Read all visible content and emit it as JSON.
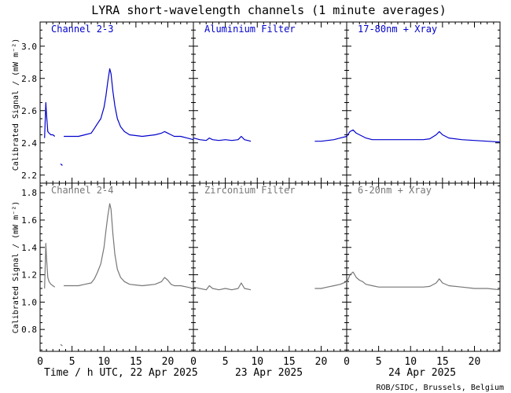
{
  "chart_data": {
    "type": "line",
    "title": "LYRA short-wavelength channels (1 minute averages)",
    "ylabel": "Calibrated Signal / (mW m⁻²)",
    "x_ticks": [
      "0",
      "5",
      "10",
      "15",
      "20"
    ],
    "x_range_hours": [
      0,
      24
    ],
    "days": [
      {
        "label": "Time / h UTC, 22 Apr 2025"
      },
      {
        "label": "23 Apr 2025"
      },
      {
        "label": "24 Apr 2025"
      }
    ],
    "credit": "ROB/SIDC, Brussels, Belgium",
    "rows": [
      {
        "color": "#0000cc",
        "ylim": [
          2.15,
          3.15
        ],
        "yticks": [
          "2.2",
          "2.4",
          "2.6",
          "2.8",
          "3.0"
        ],
        "ytick_values": [
          2.2,
          2.4,
          2.6,
          2.8,
          3.0
        ],
        "panels": [
          {
            "title": "Channel 2-3",
            "series": [
              {
                "x": [
                  0.7,
                  0.9,
                  1.0,
                  1.2,
                  1.4,
                  1.7,
                  2.0,
                  2.3
                ],
                "y": [
                  2.43,
                  2.65,
                  2.58,
                  2.47,
                  2.46,
                  2.45,
                  2.45,
                  2.44
                ]
              },
              {
                "x": [
                  3.2,
                  3.5
                ],
                "y": [
                  2.27,
                  2.26
                ]
              },
              {
                "x": [
                  3.7,
                  5,
                  6,
                  7,
                  8,
                  8.5,
                  9,
                  9.5,
                  10,
                  10.3,
                  10.6,
                  10.9,
                  11.1,
                  11.4,
                  11.7,
                  12.1,
                  12.6,
                  13.2,
                  14,
                  15,
                  16,
                  17,
                  18,
                  19,
                  19.5,
                  20,
                  20.5,
                  21,
                  22,
                  23,
                  24
                ],
                "y": [
                  2.44,
                  2.44,
                  2.44,
                  2.45,
                  2.46,
                  2.49,
                  2.52,
                  2.55,
                  2.62,
                  2.69,
                  2.78,
                  2.86,
                  2.83,
                  2.72,
                  2.63,
                  2.55,
                  2.5,
                  2.47,
                  2.45,
                  2.445,
                  2.44,
                  2.445,
                  2.45,
                  2.46,
                  2.47,
                  2.46,
                  2.45,
                  2.44,
                  2.44,
                  2.43,
                  2.42
                ]
              }
            ]
          },
          {
            "title": "Aluminium Filter",
            "series": [
              {
                "x": [
                  0,
                  1,
                  2,
                  2.5,
                  3,
                  4,
                  5,
                  6,
                  7,
                  7.5,
                  8,
                  9
                ],
                "y": [
                  2.43,
                  2.42,
                  2.415,
                  2.43,
                  2.42,
                  2.415,
                  2.42,
                  2.415,
                  2.42,
                  2.44,
                  2.42,
                  2.41
                ]
              },
              {
                "x": [
                  19,
                  20,
                  21,
                  22,
                  23,
                  24
                ],
                "y": [
                  2.41,
                  2.41,
                  2.415,
                  2.42,
                  2.43,
                  2.44
                ]
              }
            ]
          },
          {
            "title": "17-80nm + Xray",
            "series": [
              {
                "x": [
                  0,
                  0.5,
                  1,
                  1.5,
                  2,
                  2.5,
                  3,
                  4,
                  5,
                  6,
                  8,
                  10,
                  12,
                  13,
                  14,
                  14.5,
                  15,
                  16,
                  18,
                  20,
                  22,
                  24
                ],
                "y": [
                  2.44,
                  2.47,
                  2.48,
                  2.46,
                  2.45,
                  2.44,
                  2.43,
                  2.42,
                  2.42,
                  2.42,
                  2.42,
                  2.42,
                  2.42,
                  2.425,
                  2.45,
                  2.47,
                  2.45,
                  2.43,
                  2.42,
                  2.415,
                  2.41,
                  2.405
                ]
              }
            ]
          }
        ]
      },
      {
        "color": "#777777",
        "ylim": [
          0.64,
          1.87
        ],
        "yticks": [
          "0.8",
          "1.0",
          "1.2",
          "1.4",
          "1.6",
          "1.8"
        ],
        "ytick_values": [
          0.8,
          1.0,
          1.2,
          1.4,
          1.6,
          1.8
        ],
        "panels": [
          {
            "title": "Channel 2-4",
            "series": [
              {
                "x": [
                  0.7,
                  0.9,
                  1.0,
                  1.2,
                  1.4,
                  1.7,
                  2.0,
                  2.3
                ],
                "y": [
                  1.1,
                  1.43,
                  1.33,
                  1.18,
                  1.15,
                  1.13,
                  1.12,
                  1.11
                ]
              },
              {
                "x": [
                  3.2,
                  3.5
                ],
                "y": [
                  0.69,
                  0.68
                ]
              },
              {
                "x": [
                  3.7,
                  5,
                  6,
                  7,
                  8,
                  8.5,
                  9,
                  9.5,
                  10,
                  10.3,
                  10.6,
                  10.9,
                  11.1,
                  11.4,
                  11.7,
                  12.1,
                  12.6,
                  13.2,
                  14,
                  15,
                  16,
                  17,
                  18,
                  19,
                  19.5,
                  20,
                  20.5,
                  21,
                  22,
                  23,
                  24
                ],
                "y": [
                  1.12,
                  1.12,
                  1.12,
                  1.13,
                  1.14,
                  1.17,
                  1.22,
                  1.28,
                  1.4,
                  1.52,
                  1.63,
                  1.72,
                  1.68,
                  1.5,
                  1.35,
                  1.24,
                  1.18,
                  1.15,
                  1.13,
                  1.125,
                  1.12,
                  1.125,
                  1.13,
                  1.15,
                  1.18,
                  1.16,
                  1.13,
                  1.12,
                  1.12,
                  1.11,
                  1.1
                ]
              }
            ]
          },
          {
            "title": "Zirconium Filter",
            "series": [
              {
                "x": [
                  0,
                  1,
                  2,
                  2.5,
                  3,
                  4,
                  5,
                  6,
                  7,
                  7.5,
                  8,
                  9
                ],
                "y": [
                  1.11,
                  1.1,
                  1.09,
                  1.12,
                  1.1,
                  1.09,
                  1.1,
                  1.09,
                  1.1,
                  1.14,
                  1.1,
                  1.09
                ]
              },
              {
                "x": [
                  19,
                  20,
                  21,
                  22,
                  23,
                  24
                ],
                "y": [
                  1.1,
                  1.1,
                  1.11,
                  1.12,
                  1.13,
                  1.15
                ]
              }
            ]
          },
          {
            "title": "6-20nm + Xray",
            "series": [
              {
                "x": [
                  0,
                  0.5,
                  1,
                  1.5,
                  2,
                  2.5,
                  3,
                  4,
                  5,
                  6,
                  8,
                  10,
                  12,
                  13,
                  14,
                  14.5,
                  15,
                  16,
                  18,
                  20,
                  22,
                  24
                ],
                "y": [
                  1.14,
                  1.2,
                  1.22,
                  1.18,
                  1.16,
                  1.15,
                  1.13,
                  1.12,
                  1.11,
                  1.11,
                  1.11,
                  1.11,
                  1.11,
                  1.115,
                  1.14,
                  1.17,
                  1.14,
                  1.12,
                  1.11,
                  1.1,
                  1.1,
                  1.09
                ]
              }
            ]
          }
        ]
      }
    ]
  }
}
